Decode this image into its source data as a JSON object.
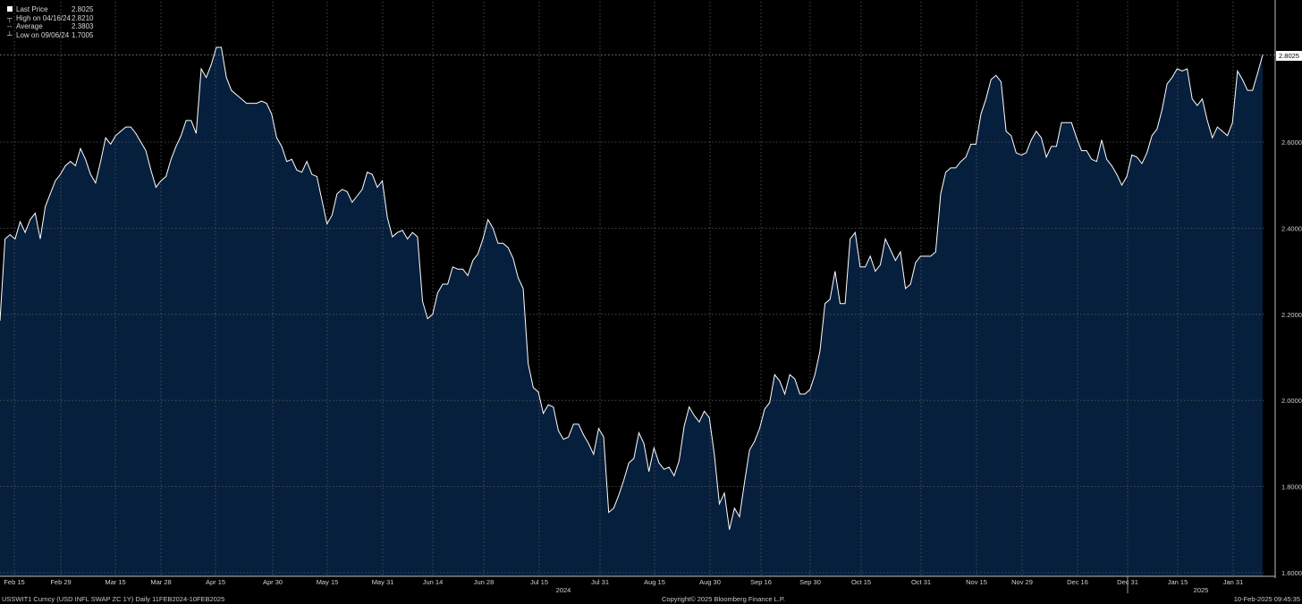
{
  "legend": {
    "last_price_label": "Last Price",
    "last_price_value": "2.8025",
    "high_label": "High on 04/16/24",
    "high_value": "2.8210",
    "average_label": "Average",
    "average_value": "2.3803",
    "low_label": "Low on 09/06/24",
    "low_value": "1.7005"
  },
  "last_price_tag": "2.8025",
  "footer": {
    "left": "USSWIT1 Curncy (USD INFL SWAP ZC 1Y)  Daily 11FEB2024-10FEB2025",
    "center": "Copyright© 2025 Bloomberg Finance L.P.",
    "right": "10-Feb-2025 09:45:35"
  },
  "colors": {
    "background": "#000000",
    "area_fill": "#061f3d",
    "line": "#ffffff",
    "grid": "#5a5a5a"
  },
  "chart_data": {
    "type": "area",
    "title": "",
    "xlabel": "",
    "ylabel": "",
    "ylim": [
      1.6,
      2.8
    ],
    "yticks": [
      "1.6000",
      "1.8000",
      "2.0000",
      "2.2000",
      "2.4000",
      "2.6000"
    ],
    "xticks": [
      "Feb 15",
      "Feb 29",
      "Mar 15",
      "Mar 28",
      "Apr 15",
      "Apr 30",
      "May 15",
      "May 31",
      "Jun 14",
      "Jun 28",
      "Jul 15",
      "Jul 31",
      "Aug 15",
      "Aug 30",
      "Sep 16",
      "Sep 30",
      "Oct 15",
      "Oct 31",
      "Nov 15",
      "Nov 29",
      "Dec 16",
      "Dec 31",
      "Jan 15",
      "Jan 31"
    ],
    "year_labels": [
      "2024",
      "2025"
    ],
    "grid": true,
    "series": [
      {
        "values": [
          2.185,
          2.375,
          2.385,
          2.375,
          2.415,
          2.39,
          2.42,
          2.435,
          2.375,
          2.45,
          2.48,
          2.51,
          2.525,
          2.545,
          2.555,
          2.545,
          2.585,
          2.56,
          2.525,
          2.505,
          2.555,
          2.61,
          2.595,
          2.615,
          2.625,
          2.635,
          2.635,
          2.62,
          2.6,
          2.58,
          2.535,
          2.495,
          2.51,
          2.52,
          2.56,
          2.59,
          2.615,
          2.65,
          2.65,
          2.62,
          2.77,
          2.75,
          2.78,
          2.82,
          2.82,
          2.75,
          2.72,
          2.71,
          2.7,
          2.69,
          2.69,
          2.69,
          2.695,
          2.69,
          2.665,
          2.61,
          2.59,
          2.555,
          2.56,
          2.535,
          2.53,
          2.555,
          2.525,
          2.52,
          2.465,
          2.41,
          2.43,
          2.48,
          2.49,
          2.485,
          2.46,
          2.475,
          2.49,
          2.53,
          2.525,
          2.495,
          2.51,
          2.425,
          2.38,
          2.39,
          2.395,
          2.375,
          2.39,
          2.38,
          2.23,
          2.19,
          2.2,
          2.25,
          2.27,
          2.27,
          2.31,
          2.305,
          2.305,
          2.29,
          2.325,
          2.34,
          2.375,
          2.42,
          2.4,
          2.365,
          2.365,
          2.355,
          2.33,
          2.285,
          2.26,
          2.085,
          2.03,
          2.02,
          1.97,
          1.99,
          1.985,
          1.93,
          1.91,
          1.915,
          1.945,
          1.945,
          1.92,
          1.9,
          1.875,
          1.935,
          1.915,
          1.74,
          1.75,
          1.78,
          1.815,
          1.855,
          1.865,
          1.925,
          1.9,
          1.835,
          1.89,
          1.855,
          1.84,
          1.845,
          1.825,
          1.86,
          1.94,
          1.985,
          1.965,
          1.95,
          1.975,
          1.96,
          1.875,
          1.76,
          1.785,
          1.7,
          1.75,
          1.73,
          1.81,
          1.885,
          1.905,
          1.935,
          1.98,
          1.995,
          2.06,
          2.045,
          2.015,
          2.06,
          2.05,
          2.015,
          2.015,
          2.025,
          2.06,
          2.115,
          2.225,
          2.235,
          2.3,
          2.225,
          2.225,
          2.375,
          2.39,
          2.31,
          2.31,
          2.335,
          2.3,
          2.315,
          2.375,
          2.35,
          2.325,
          2.345,
          2.26,
          2.27,
          2.32,
          2.335,
          2.335,
          2.335,
          2.345,
          2.48,
          2.53,
          2.54,
          2.54,
          2.555,
          2.565,
          2.595,
          2.595,
          2.665,
          2.7,
          2.745,
          2.755,
          2.74,
          2.625,
          2.615,
          2.575,
          2.57,
          2.575,
          2.605,
          2.625,
          2.61,
          2.565,
          2.59,
          2.59,
          2.645,
          2.645,
          2.645,
          2.61,
          2.58,
          2.58,
          2.56,
          2.555,
          2.605,
          2.56,
          2.545,
          2.525,
          2.5,
          2.52,
          2.57,
          2.565,
          2.55,
          2.575,
          2.615,
          2.63,
          2.675,
          2.735,
          2.75,
          2.77,
          2.765,
          2.77,
          2.7,
          2.685,
          2.7,
          2.65,
          2.61,
          2.635,
          2.625,
          2.615,
          2.645,
          2.765,
          2.745,
          2.72,
          2.72,
          2.76,
          2.8025
        ]
      }
    ]
  }
}
